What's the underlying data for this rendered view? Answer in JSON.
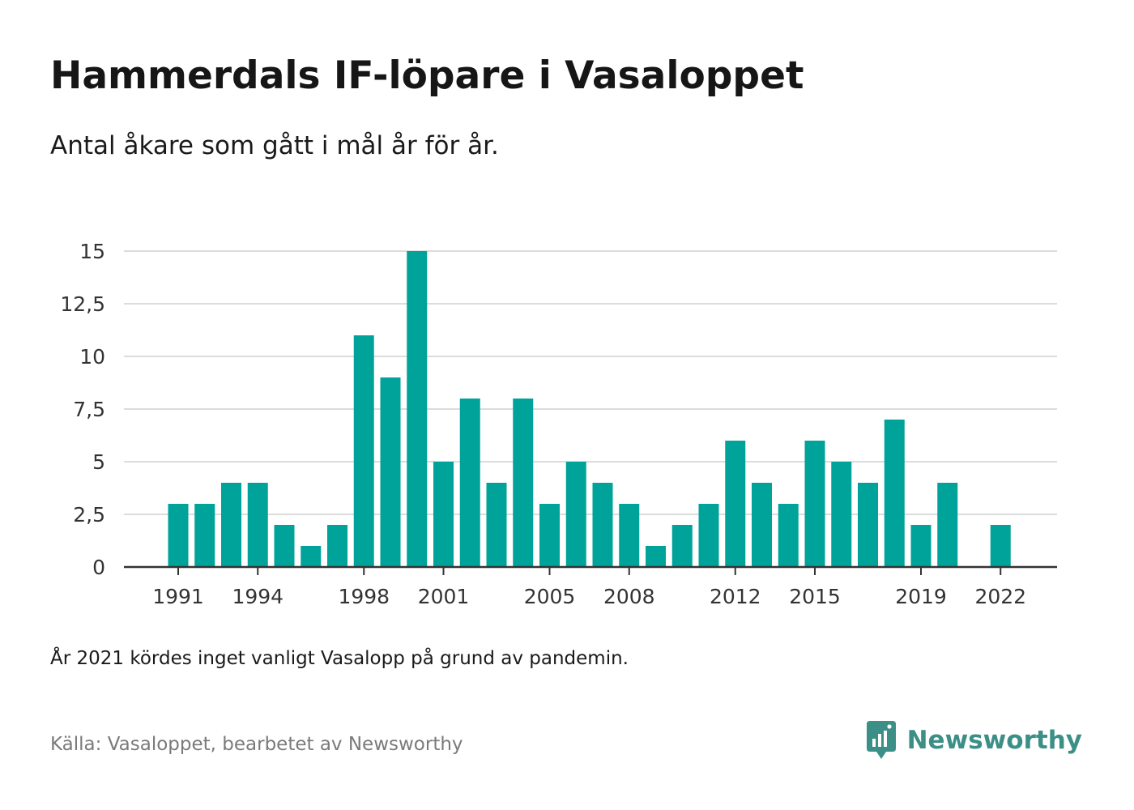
{
  "title": "Hammerdals IF-löpare i Vasaloppet",
  "subtitle": "Antal åkare som gått i mål år för år.",
  "note": "År 2021 kördes inget vanligt Vasalopp på grund av pandemin.",
  "source": "Källa: Vasaloppet, bearbetet av Newsworthy",
  "brand": {
    "name": "Newsworthy",
    "icon": "newsworthy-logo-icon"
  },
  "colors": {
    "bar": "#00a39a",
    "brand": "#3b8f86",
    "grid": "#dcdcdc",
    "axis": "#333333"
  },
  "chart_data": {
    "type": "bar",
    "title": "",
    "xlabel": "",
    "ylabel": "",
    "categories": [
      "1991",
      "1992",
      "1993",
      "1994",
      "1995",
      "1996",
      "1997",
      "1998",
      "1999",
      "2000",
      "2001",
      "2002",
      "2003",
      "2004",
      "2005",
      "2006",
      "2007",
      "2008",
      "2009",
      "2010",
      "2011",
      "2012",
      "2013",
      "2014",
      "2015",
      "2016",
      "2017",
      "2018",
      "2019",
      "2020",
      "2021",
      "2022"
    ],
    "values": [
      3,
      3,
      4,
      4,
      2,
      1,
      2,
      11,
      9,
      15,
      5,
      8,
      4,
      8,
      3,
      5,
      4,
      3,
      1,
      2,
      3,
      6,
      4,
      3,
      6,
      5,
      4,
      7,
      2,
      4,
      null,
      2
    ],
    "ylim": [
      0,
      15
    ],
    "yticks": [
      0,
      2.5,
      5,
      7.5,
      10,
      12.5,
      15
    ],
    "ytick_labels": [
      "0",
      "2,5",
      "5",
      "7,5",
      "10",
      "12,5",
      "15"
    ],
    "xtick_labels": [
      "1991",
      "1994",
      "1998",
      "2001",
      "2005",
      "2008",
      "2012",
      "2015",
      "2019",
      "2022"
    ],
    "grid": true,
    "legend": "none"
  }
}
